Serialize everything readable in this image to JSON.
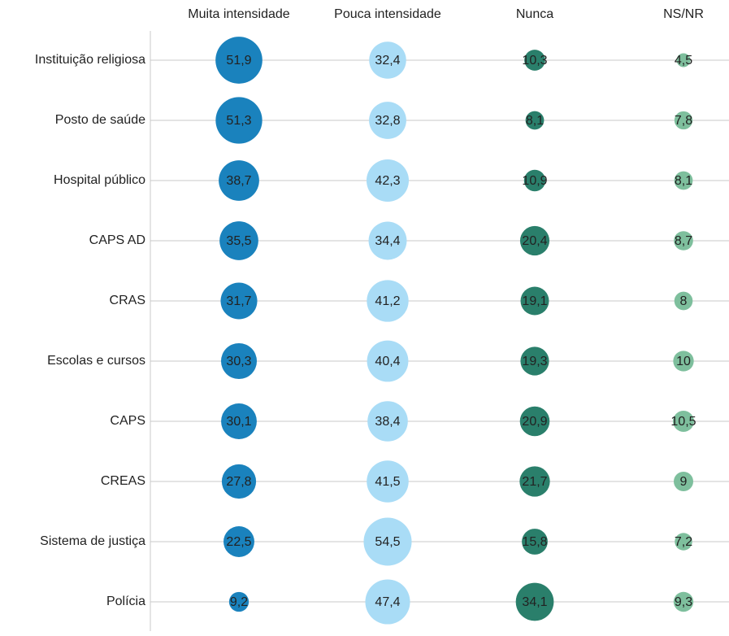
{
  "chart_data": {
    "type": "bubble",
    "categories": [
      "Instituição religiosa",
      "Posto de saúde",
      "Hospital público",
      "CAPS AD",
      "CRAS",
      "Escolas e cursos",
      "CAPS",
      "CREAS",
      "Sistema de justiça",
      "Polícia"
    ],
    "series": [
      {
        "name": "Muita intensidade",
        "color": "#1a82bd",
        "values": [
          51.9,
          51.3,
          38.7,
          35.5,
          31.7,
          30.3,
          30.1,
          27.8,
          22.5,
          9.2
        ],
        "value_labels": [
          "51,9",
          "51,3",
          "38,7",
          "35,5",
          "31,7",
          "30,3",
          "30,1",
          "27,8",
          "22,5",
          "9,2"
        ]
      },
      {
        "name": "Pouca intensidade",
        "color": "#a9dcf6",
        "values": [
          32.4,
          32.8,
          42.3,
          34.4,
          41.2,
          40.4,
          38.4,
          41.5,
          54.5,
          47.4
        ],
        "value_labels": [
          "32,4",
          "32,8",
          "42,3",
          "34,4",
          "41,2",
          "40,4",
          "38,4",
          "41,5",
          "54,5",
          "47,4"
        ]
      },
      {
        "name": "Nunca",
        "color": "#2a7f6b",
        "values": [
          10.3,
          8.1,
          10.9,
          20.4,
          19.1,
          19.3,
          20.9,
          21.7,
          15.8,
          34.1
        ],
        "value_labels": [
          "10,3",
          "8,1",
          "10,9",
          "20,4",
          "19,1",
          "19,3",
          "20,9",
          "21,7",
          "15,8",
          "34,1"
        ]
      },
      {
        "name": "NS/NR",
        "color": "#7ebf9d",
        "values": [
          4.5,
          7.8,
          8.1,
          8.7,
          8,
          10,
          10.5,
          9,
          7.2,
          9.3
        ],
        "value_labels": [
          "4,5",
          "7,8",
          "8,1",
          "8,7",
          "8",
          "10",
          "10,5",
          "9",
          "7,2",
          "9,3"
        ]
      }
    ]
  }
}
